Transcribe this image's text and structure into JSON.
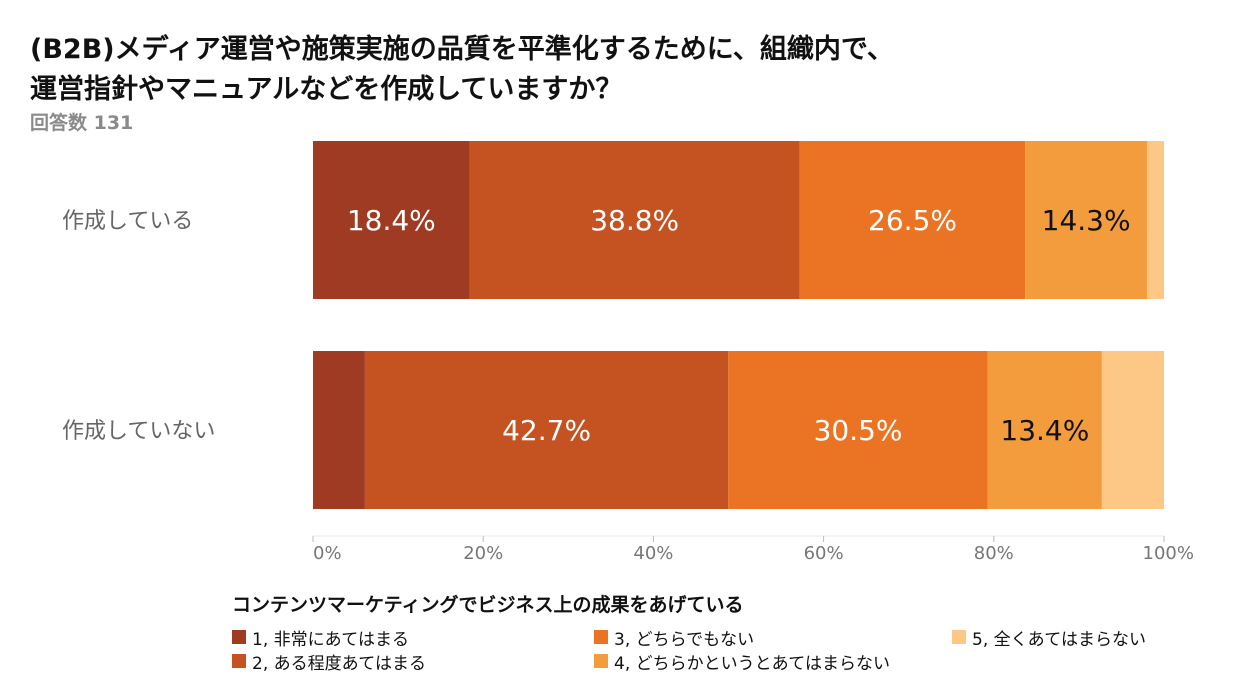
{
  "title_lines": [
    "(B2B)メディア運営や施策実施の品質を平準化するために、組織内で、",
    "運営指針やマニュアルなどを作成していますか？"
  ],
  "subtitle": "回答数 131",
  "chart_data": {
    "type": "bar",
    "orientation": "horizontal",
    "stacked": true,
    "categories": [
      "作成している",
      "作成していない"
    ],
    "series": [
      {
        "name": "1, 非常にあてはまる",
        "color": "#9e3b22",
        "values": [
          18.4,
          6.1
        ]
      },
      {
        "name": "2, ある程度あてはまる",
        "color": "#c55322",
        "values": [
          38.8,
          42.7
        ]
      },
      {
        "name": "3, どちらでもない",
        "color": "#eb7424",
        "values": [
          26.5,
          30.5
        ]
      },
      {
        "name": "4, どちらかというとあてはまらない",
        "color": "#f39c3e",
        "values": [
          14.3,
          13.4
        ]
      },
      {
        "name": "5, 全くあてはまらない",
        "color": "#fdc785",
        "values": [
          2.0,
          7.3
        ]
      }
    ],
    "data_labels": [
      [
        "18.4%",
        "38.8%",
        "26.5%",
        "14.3%",
        ""
      ],
      [
        "",
        "42.7%",
        "30.5%",
        "13.4%",
        ""
      ]
    ],
    "label_colors": [
      "#ffffff",
      "#ffffff",
      "#ffffff",
      "#111111",
      "#111111"
    ],
    "x_ticks": [
      "0%",
      "20%",
      "40%",
      "60%",
      "80%",
      "100%"
    ],
    "xlim": [
      0,
      100
    ],
    "legend_title": "コンテンツマーケティングでビジネス上の成果をあげている",
    "legend_position": "bottom"
  }
}
